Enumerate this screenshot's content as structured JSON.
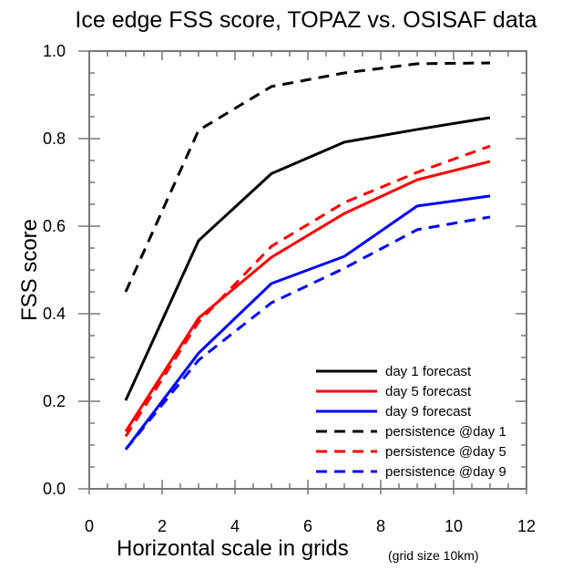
{
  "chart_data": {
    "type": "line",
    "title": "Ice edge FSS score, TOPAZ vs. OSISAF data",
    "xlabel": "Horizontal scale in grids",
    "xlabel_note": "(grid size 10km)",
    "ylabel": "FSS score",
    "xlim": [
      0,
      12
    ],
    "ylim": [
      0,
      1.0
    ],
    "xticks": [
      0,
      2,
      4,
      6,
      8,
      10,
      12
    ],
    "xtick_labels": [
      "0",
      "2",
      "4",
      "6",
      "8",
      "10",
      "12"
    ],
    "yticks": [
      0.0,
      0.2,
      0.4,
      0.6,
      0.8,
      1.0
    ],
    "ytick_labels": [
      "0.0",
      "0.2",
      "0.4",
      "0.6",
      "0.8",
      "1.0"
    ],
    "x_minor_step": 0.5,
    "y_minor_step": 0.05,
    "grid": false,
    "legend_position": "bottom-right",
    "x": [
      1,
      3,
      5,
      7,
      9,
      11
    ],
    "series": [
      {
        "name": "day 1 forecast",
        "color": "#000000",
        "dash": "solid",
        "values": [
          0.202,
          0.567,
          0.72,
          0.792,
          0.821,
          0.848
        ]
      },
      {
        "name": "day 5 forecast",
        "color": "#ff0000",
        "dash": "solid",
        "values": [
          0.131,
          0.39,
          0.529,
          0.629,
          0.706,
          0.748
        ]
      },
      {
        "name": "day 9 forecast",
        "color": "#0000ff",
        "dash": "solid",
        "values": [
          0.09,
          0.31,
          0.469,
          0.531,
          0.646,
          0.669
        ]
      },
      {
        "name": "persistence @day 1",
        "color": "#000000",
        "dash": "dashed",
        "values": [
          0.45,
          0.819,
          0.919,
          0.95,
          0.971,
          0.973
        ]
      },
      {
        "name": "persistence @day 5",
        "color": "#ff0000",
        "dash": "dashed",
        "values": [
          0.12,
          0.381,
          0.554,
          0.654,
          0.723,
          0.783
        ]
      },
      {
        "name": "persistence @day 9",
        "color": "#0000ff",
        "dash": "dashed",
        "values": [
          0.09,
          0.294,
          0.425,
          0.504,
          0.592,
          0.621
        ]
      }
    ]
  }
}
